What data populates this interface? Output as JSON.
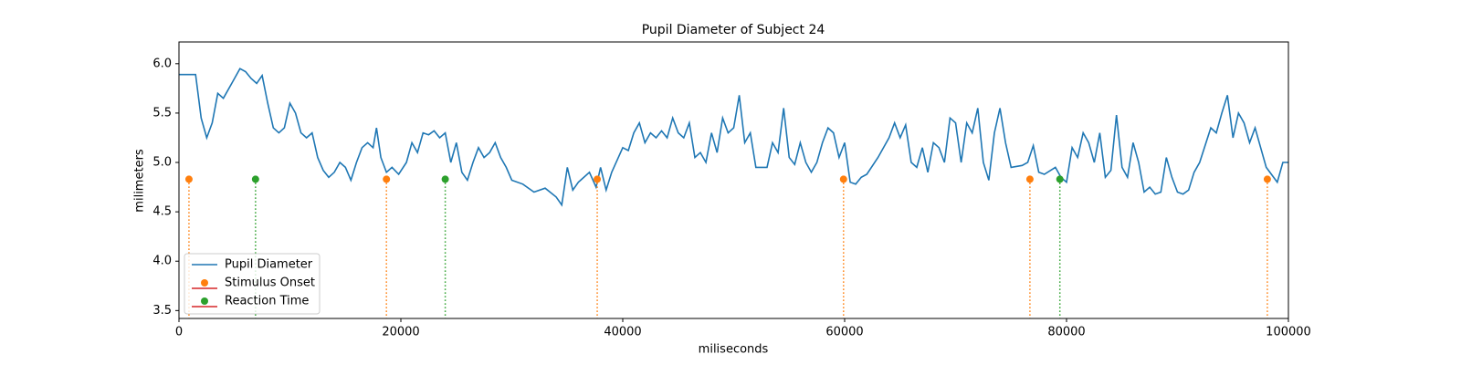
{
  "chart_data": {
    "type": "line",
    "title": "Pupil Diameter of Subject 24",
    "xlabel": "miliseconds",
    "ylabel": "milimeters",
    "xlim": [
      0,
      100000
    ],
    "ylim": [
      3.42,
      6.22
    ],
    "xticks": [
      0,
      20000,
      40000,
      60000,
      80000,
      100000
    ],
    "yticks": [
      3.5,
      {
        "value": 4,
        "label": "4.0"
      },
      4.5,
      {
        "value": 5,
        "label": "5.0"
      },
      5.5,
      {
        "value": 6,
        "label": "6.0"
      }
    ],
    "legend": "lower left",
    "series": [
      {
        "name": "Pupil Diameter",
        "type": "line",
        "color": "#1f77b4",
        "x": [
          0,
          1000,
          1500,
          2000,
          2500,
          3000,
          3500,
          4000,
          5000,
          5500,
          6000,
          6500,
          7000,
          7500,
          8000,
          8500,
          9000,
          9500,
          10000,
          10500,
          11000,
          11500,
          12000,
          12500,
          13000,
          13500,
          14000,
          14500,
          15000,
          15500,
          16000,
          16500,
          17000,
          17500,
          17800,
          18200,
          18700,
          19200,
          19800,
          20500,
          21000,
          21500,
          22000,
          22500,
          23000,
          23500,
          24000,
          24500,
          25000,
          25500,
          26000,
          26500,
          27000,
          27500,
          28000,
          28500,
          29000,
          29500,
          30000,
          31000,
          32000,
          33000,
          34000,
          34500,
          35000,
          35500,
          36000,
          37000,
          37600,
          38000,
          38500,
          39000,
          40000,
          40500,
          41000,
          41500,
          42000,
          42500,
          43000,
          43500,
          44000,
          44500,
          45000,
          45500,
          46000,
          46500,
          47000,
          47500,
          48000,
          48500,
          49000,
          49500,
          50000,
          50500,
          51000,
          51500,
          52000,
          53000,
          53500,
          54000,
          54500,
          55000,
          55500,
          56000,
          56500,
          57000,
          57500,
          58000,
          58500,
          59000,
          59500,
          60000,
          60500,
          61000,
          61500,
          62000,
          63000,
          64000,
          64500,
          65000,
          65500,
          66000,
          66500,
          67000,
          67500,
          68000,
          68500,
          69000,
          69500,
          70000,
          70500,
          71000,
          71500,
          72000,
          72500,
          73000,
          73500,
          74000,
          74500,
          75000,
          76000,
          76500,
          77000,
          77500,
          78000,
          79000,
          79500,
          80000,
          80500,
          81000,
          81500,
          82000,
          82500,
          83000,
          83500,
          84000,
          84500,
          85000,
          85500,
          86000,
          86500,
          87000,
          87500,
          88000,
          88500,
          89000,
          89500,
          90000,
          90500,
          91000,
          91500,
          92000,
          93000,
          93500,
          94000,
          94500,
          95000,
          95500,
          96000,
          96500,
          97000,
          97500,
          98000,
          99000,
          99500,
          100000
        ],
        "values": [
          5.89,
          5.89,
          5.89,
          5.45,
          5.25,
          5.4,
          5.7,
          5.65,
          5.85,
          5.95,
          5.92,
          5.85,
          5.8,
          5.88,
          5.6,
          5.35,
          5.3,
          5.35,
          5.6,
          5.5,
          5.3,
          5.25,
          5.3,
          5.05,
          4.92,
          4.85,
          4.9,
          5.0,
          4.95,
          4.82,
          5.0,
          5.15,
          5.2,
          5.15,
          5.35,
          5.05,
          4.9,
          4.95,
          4.88,
          5.0,
          5.2,
          5.1,
          5.3,
          5.28,
          5.32,
          5.25,
          5.3,
          5.0,
          5.2,
          4.9,
          4.82,
          5.0,
          5.15,
          5.05,
          5.1,
          5.2,
          5.05,
          4.95,
          4.82,
          4.78,
          4.7,
          4.74,
          4.65,
          4.57,
          4.95,
          4.72,
          4.8,
          4.9,
          4.75,
          4.95,
          4.72,
          4.9,
          5.15,
          5.12,
          5.3,
          5.4,
          5.2,
          5.3,
          5.25,
          5.32,
          5.25,
          5.45,
          5.3,
          5.25,
          5.4,
          5.05,
          5.1,
          5.0,
          5.3,
          5.1,
          5.45,
          5.3,
          5.35,
          5.68,
          5.2,
          5.3,
          4.95,
          4.95,
          5.2,
          5.1,
          5.55,
          5.05,
          4.98,
          5.2,
          5.0,
          4.9,
          5.0,
          5.2,
          5.35,
          5.3,
          5.05,
          5.2,
          4.8,
          4.78,
          4.85,
          4.88,
          5.05,
          5.25,
          5.4,
          5.25,
          5.38,
          5.0,
          4.95,
          5.15,
          4.9,
          5.2,
          5.15,
          5.0,
          5.45,
          5.4,
          5.0,
          5.4,
          5.3,
          5.55,
          5.0,
          4.82,
          5.3,
          5.55,
          5.2,
          4.95,
          4.97,
          5.0,
          5.17,
          4.9,
          4.88,
          4.95,
          4.85,
          4.8,
          5.15,
          5.05,
          5.3,
          5.2,
          5.0,
          5.3,
          4.85,
          4.92,
          5.48,
          4.95,
          4.85,
          5.2,
          5.0,
          4.7,
          4.75,
          4.68,
          4.7,
          5.05,
          4.85,
          4.7,
          4.68,
          4.72,
          4.9,
          5.0,
          5.35,
          5.3,
          5.5,
          5.68,
          5.25,
          5.5,
          5.4,
          5.2,
          5.35,
          5.15,
          4.95,
          4.8,
          5.0,
          5.0
        ]
      },
      {
        "name": "Stimulus Onset",
        "type": "stem",
        "color": "#ff7f0e",
        "baseline_color": "#d62728",
        "x": [
          900,
          18700,
          37700,
          59900,
          76700,
          98100
        ],
        "values": [
          4.83,
          4.83,
          4.83,
          4.83,
          4.83,
          4.83
        ]
      },
      {
        "name": "Reaction Time",
        "type": "stem",
        "color": "#2ca02c",
        "baseline_color": "#d62728",
        "x": [
          6900,
          24000,
          79400
        ],
        "values": [
          4.83,
          4.83,
          4.83
        ]
      }
    ]
  }
}
